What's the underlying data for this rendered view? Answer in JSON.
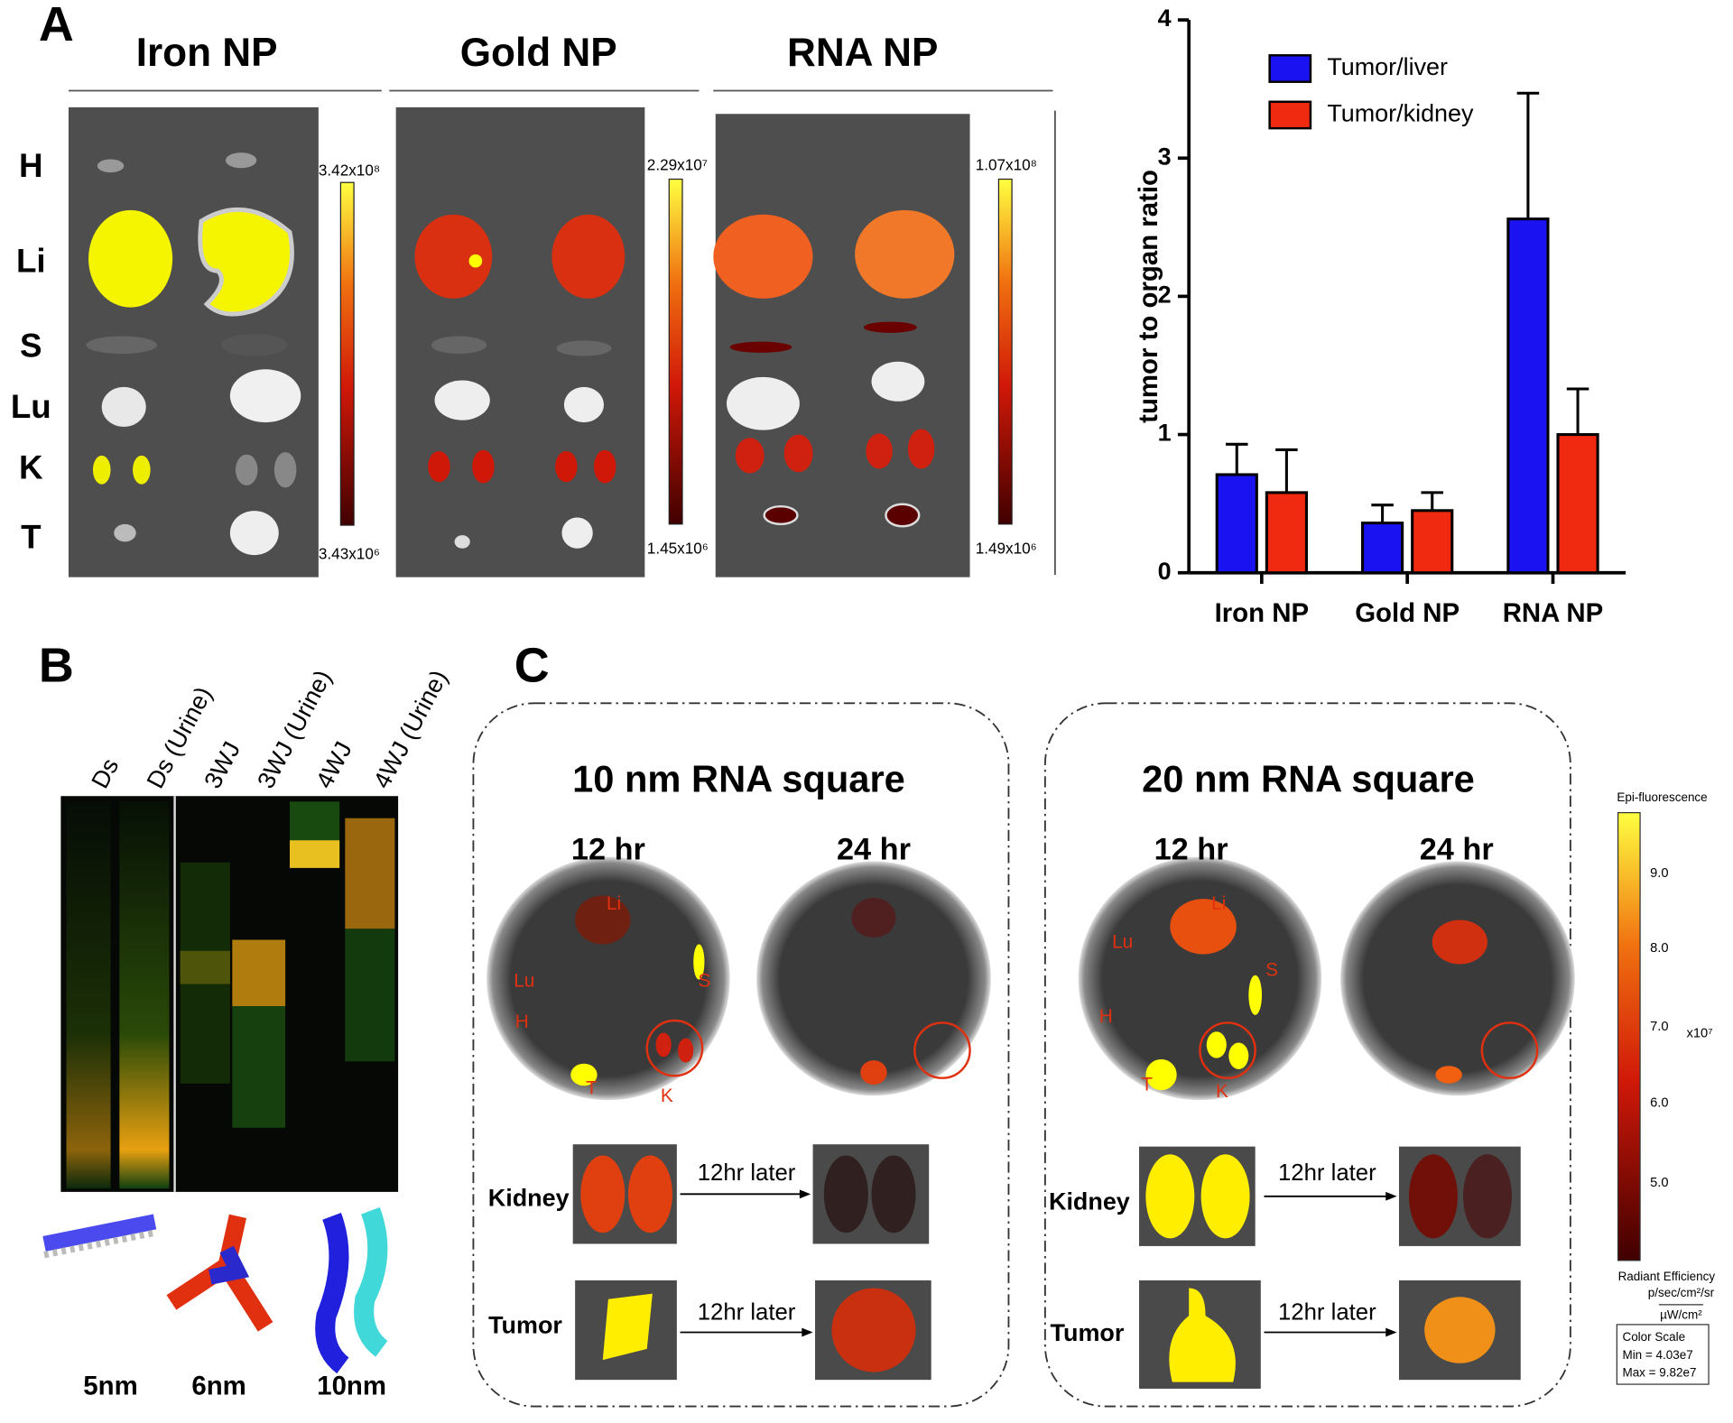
{
  "panel_a": {
    "label": "A",
    "groups": [
      "Iron NP",
      "Gold NP",
      "RNA NP"
    ],
    "organs": [
      "H",
      "Li",
      "S",
      "Lu",
      "K",
      "T"
    ],
    "scales": [
      {
        "max": "3.42x10⁸",
        "min": "3.43x10⁶"
      },
      {
        "max": "2.29x10⁷",
        "min": "1.45x10⁶"
      },
      {
        "max": "1.07x10⁸",
        "min": "1.49x10⁶"
      }
    ]
  },
  "chart_data": {
    "type": "bar",
    "ylabel": "tumor to organ ratio",
    "categories": [
      "Iron NP",
      "Gold NP",
      "RNA NP"
    ],
    "series": [
      {
        "name": "Tumor/liver",
        "color": "#1a12f0",
        "values": [
          0.71,
          0.36,
          2.56
        ],
        "errors": [
          0.22,
          0.13,
          0.91
        ]
      },
      {
        "name": "Tumor/kidney",
        "color": "#f02a10",
        "values": [
          0.58,
          0.45,
          1.0
        ],
        "errors": [
          0.31,
          0.13,
          0.33
        ]
      }
    ],
    "ylim": [
      0,
      4
    ],
    "yticks": [
      0,
      1,
      2,
      3,
      4
    ],
    "legend": "upper-left"
  },
  "panel_b": {
    "label": "B",
    "lanes": [
      "Ds",
      "Ds (Urine)",
      "3WJ",
      "3WJ (Urine)",
      "4WJ",
      "4WJ (Urine)"
    ],
    "sizes": [
      "5nm",
      "6nm",
      "10nm"
    ]
  },
  "panel_c": {
    "label": "C",
    "boxes": [
      {
        "title": "10 nm RNA square",
        "times": [
          "12 hr",
          "24 hr"
        ],
        "dish_labels": [
          "Li",
          "Lu",
          "S",
          "H",
          "T",
          "K"
        ],
        "rows": [
          "Kidney",
          "Tumor"
        ],
        "arrows": [
          "12hr later",
          "12hr later"
        ]
      },
      {
        "title": "20 nm RNA square",
        "times": [
          "12 hr",
          "24 hr"
        ],
        "dish_labels": [
          "Li",
          "Lu",
          "S",
          "H",
          "T",
          "K"
        ],
        "rows": [
          "Kidney",
          "Tumor"
        ],
        "arrows": [
          "12hr later",
          "12hr later"
        ]
      }
    ],
    "colorbar": {
      "title": "Epi-fluorescence",
      "ticks": [
        "9.0",
        "8.0",
        "7.0",
        "6.0",
        "5.0"
      ],
      "exponent": "x10⁷",
      "unit_title": "Radiant Efficiency",
      "unit_num": "p/sec/cm²/sr",
      "unit_den": "µW/cm²",
      "scale": [
        "Color Scale",
        "Min = 4.03e7",
        "Max = 9.82e7"
      ]
    }
  }
}
